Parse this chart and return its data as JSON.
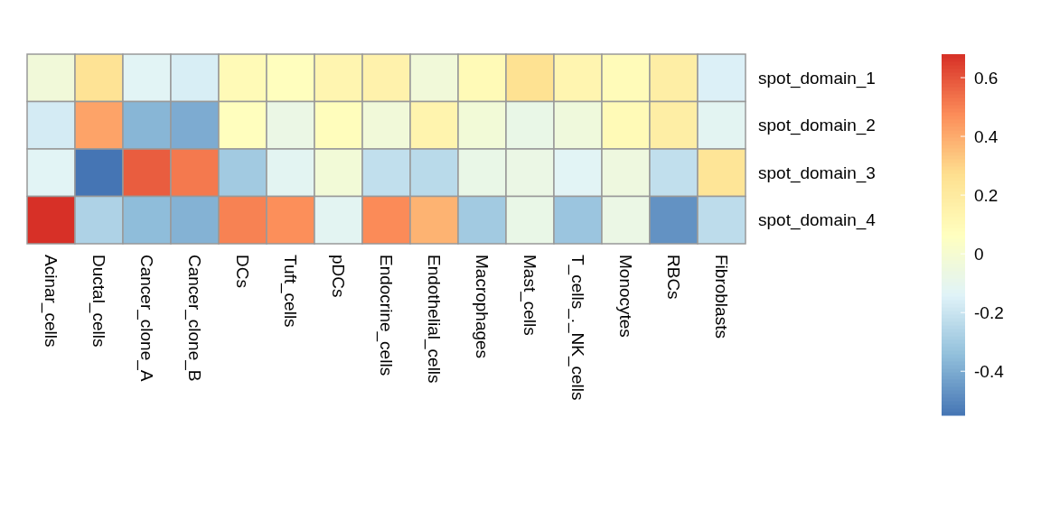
{
  "chart_data": {
    "type": "heatmap",
    "categories": [
      "Acinar_cells",
      "Ductal_cells",
      "Cancer_clone_A",
      "Cancer_clone_B",
      "DCs",
      "Tuft_cells",
      "pDCs",
      "Endocrine_cells",
      "Endothelial_cells",
      "Macrophages",
      "Mast_cells",
      "T_cells_._NK_cells",
      "Monocytes",
      "RBCs",
      "Fibroblasts"
    ],
    "y_categories": [
      "spot_domain_1",
      "spot_domain_2",
      "spot_domain_3",
      "spot_domain_4"
    ],
    "cells": [
      [
        -0.03,
        0.25,
        -0.13,
        -0.16,
        0.1,
        0.07,
        0.13,
        0.15,
        -0.03,
        0.1,
        0.26,
        0.13,
        0.09,
        0.18,
        -0.15
      ],
      [
        -0.17,
        0.42,
        -0.37,
        -0.4,
        0.07,
        -0.07,
        0.08,
        -0.03,
        0.14,
        -0.02,
        -0.08,
        -0.04,
        0.1,
        0.18,
        -0.12
      ],
      [
        -0.13,
        -0.55,
        0.58,
        0.52,
        -0.3,
        -0.12,
        -0.02,
        -0.22,
        -0.24,
        -0.08,
        -0.07,
        -0.13,
        -0.05,
        -0.22,
        0.24
      ],
      [
        0.68,
        -0.27,
        -0.35,
        -0.38,
        0.5,
        0.47,
        -0.12,
        0.48,
        0.38,
        -0.3,
        -0.08,
        -0.32,
        -0.07,
        -0.47,
        -0.23
      ]
    ],
    "clim": [
      -0.55,
      0.68
    ],
    "cticks": [
      -0.4,
      -0.2,
      0,
      0.2,
      0.4,
      0.6
    ],
    "colors": [
      "#4575b4",
      "#91bfdb",
      "#e0f3f8",
      "#ffffbf",
      "#fee090",
      "#fc8d59",
      "#d73027"
    ]
  }
}
